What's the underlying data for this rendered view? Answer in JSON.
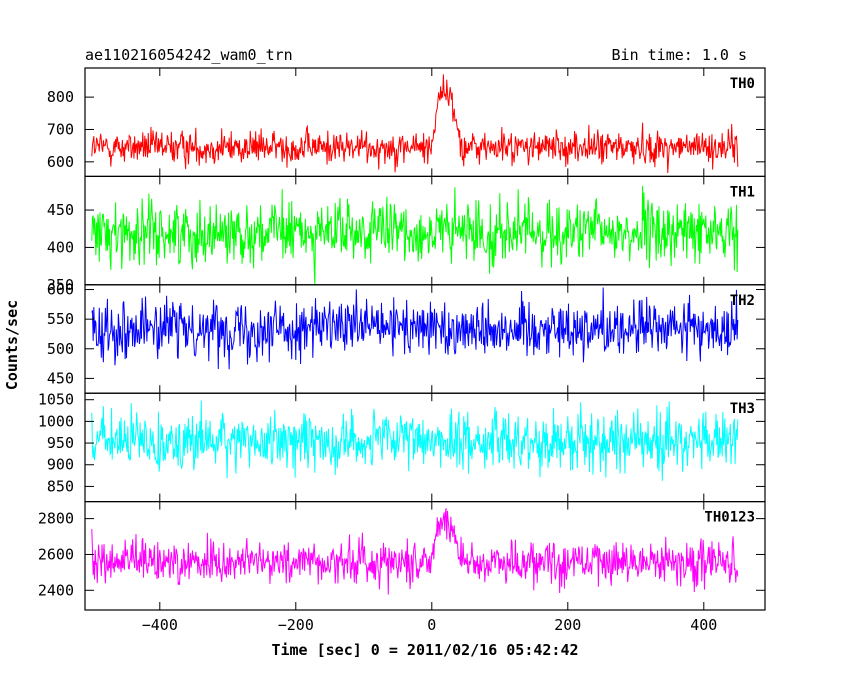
{
  "header": {
    "title": "ae110216054242_wam0_trn",
    "bin_time": "Bin time: 1.0 s"
  },
  "chart_data": {
    "type": "line",
    "xlabel": "Time [sec] 0 = 2011/02/16 05:42:42",
    "ylabel": "Counts/sec",
    "xlim": [
      -510,
      490
    ],
    "x_ticks": [
      -400,
      -200,
      0,
      200,
      400
    ],
    "x_range_of_data": [
      -500,
      450
    ],
    "bin_time_s": 1.0,
    "grid": false,
    "panels": [
      {
        "name": "TH0",
        "color": "#ff0000",
        "ylim": [
          555,
          890
        ],
        "y_ticks": [
          600,
          700,
          800
        ],
        "baseline": 645,
        "noise_sd": 26,
        "burst": {
          "peak_time": 10,
          "rise": [
            0,
            10
          ],
          "plateau": [
            10,
            25
          ],
          "decay": [
            25,
            45
          ],
          "peak_level": 815
        }
      },
      {
        "name": "TH1",
        "color": "#00ff00",
        "ylim": [
          350,
          495
        ],
        "y_ticks": [
          350,
          400,
          450
        ],
        "baseline": 420,
        "noise_sd": 21,
        "burst": null
      },
      {
        "name": "TH2",
        "color": "#0000ff",
        "ylim": [
          425,
          608
        ],
        "y_ticks": [
          450,
          500,
          550,
          600
        ],
        "baseline": 535,
        "noise_sd": 24,
        "burst": null
      },
      {
        "name": "TH3",
        "color": "#00ffff",
        "ylim": [
          815,
          1065
        ],
        "y_ticks": [
          850,
          900,
          950,
          1000,
          1050
        ],
        "baseline": 955,
        "noise_sd": 33,
        "burst": null
      },
      {
        "name": "TH0123",
        "color": "#ff00ff",
        "ylim": [
          2290,
          2895
        ],
        "y_ticks": [
          2400,
          2600,
          2800
        ],
        "baseline": 2560,
        "noise_sd": 62,
        "burst": {
          "peak_time": 10,
          "rise": [
            0,
            8
          ],
          "plateau": [
            8,
            25
          ],
          "decay": [
            25,
            45
          ],
          "peak_level": 2790
        }
      }
    ]
  }
}
